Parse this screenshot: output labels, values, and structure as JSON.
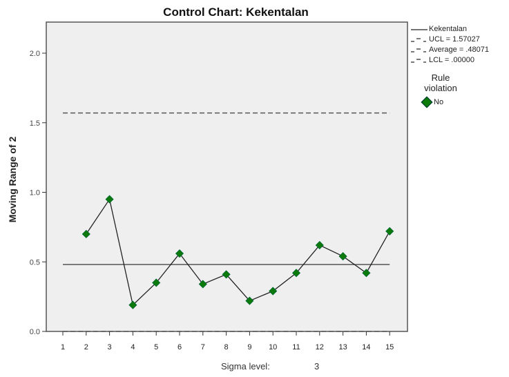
{
  "chart_data": {
    "type": "line",
    "title": "Control Chart: Kekentalan",
    "xlabel": "Sigma level:",
    "xlabel_value": "3",
    "ylabel": "Moving Range of      2",
    "x": [
      1,
      2,
      3,
      4,
      5,
      6,
      7,
      8,
      9,
      10,
      11,
      12,
      13,
      14,
      15
    ],
    "series": [
      {
        "name": "Kekentalan",
        "values": [
          null,
          0.7,
          0.95,
          0.19,
          0.35,
          0.56,
          0.34,
          0.41,
          0.22,
          0.29,
          0.42,
          0.62,
          0.54,
          0.42,
          0.72
        ],
        "marker": "diamond",
        "marker_color": "#0b7a0b"
      }
    ],
    "reference_lines": [
      {
        "name": "UCL",
        "value": 1.57027,
        "style": "dashed"
      },
      {
        "name": "Average",
        "value": 0.48071,
        "style": "solid"
      },
      {
        "name": "LCL",
        "value": 0.0,
        "style": "dashed"
      }
    ],
    "ylim": [
      0,
      2.22
    ],
    "yticks": [
      0.0,
      0.5,
      1.0,
      1.5,
      2.0
    ],
    "ytick_labels": [
      "0.0",
      "0.5",
      "1.0",
      "1.5",
      "2.0"
    ],
    "xticks": [
      1,
      2,
      3,
      4,
      5,
      6,
      7,
      8,
      9,
      10,
      11,
      12,
      13,
      14,
      15
    ],
    "grid": false,
    "legend_position": "right"
  },
  "legend": {
    "items": [
      {
        "label": "Kekentalan",
        "style": "solid"
      },
      {
        "label": "UCL = 1.57027",
        "style": "dashed"
      },
      {
        "label": "Average = .48071",
        "style": "dashed"
      },
      {
        "label": "LCL = .00000",
        "style": "dashed"
      }
    ],
    "rule_title_1": "Rule",
    "rule_title_2": "violation",
    "rule_item": "No"
  },
  "colors": {
    "plot_bg": "#efefef",
    "marker": "#0b7a0b",
    "line": "#222222",
    "ref_line": "#555555"
  }
}
